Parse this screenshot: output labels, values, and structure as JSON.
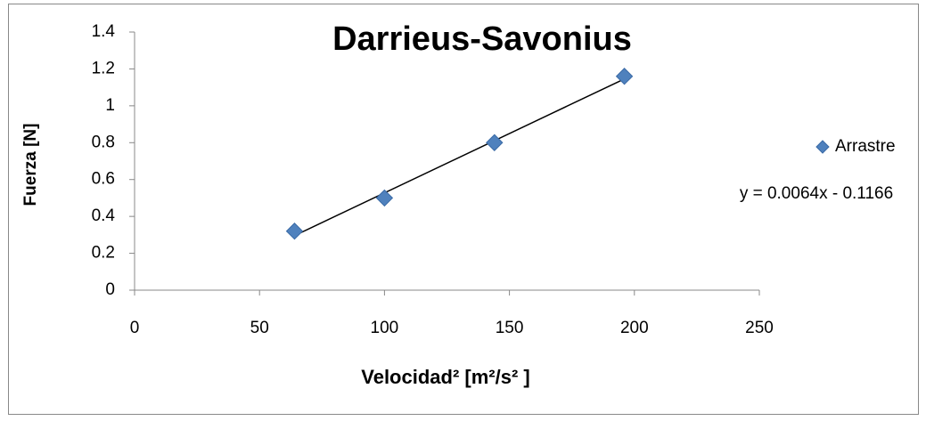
{
  "chart_data": {
    "type": "scatter",
    "title": "Darrieus-Savonius",
    "x_label": "Velocidad² [m²/s² ]",
    "y_label": "Fuerza [N]",
    "series": [
      {
        "name": "Arrastre",
        "color": "#4f81bd",
        "x": [
          64,
          100,
          144,
          196
        ],
        "values": [
          0.32,
          0.5,
          0.8,
          1.16
        ]
      }
    ],
    "trendline": {
      "label": "y = 0.0064x - 0.1166",
      "color": "#000000"
    },
    "xlim": [
      0,
      250
    ],
    "xticks": [
      0,
      50,
      100,
      150,
      200,
      250
    ],
    "ylim": [
      0,
      1.4
    ],
    "yticks": [
      0,
      0.2,
      0.4,
      0.6,
      0.8,
      1,
      1.2,
      1.4
    ],
    "grid": false,
    "legend": "right"
  }
}
